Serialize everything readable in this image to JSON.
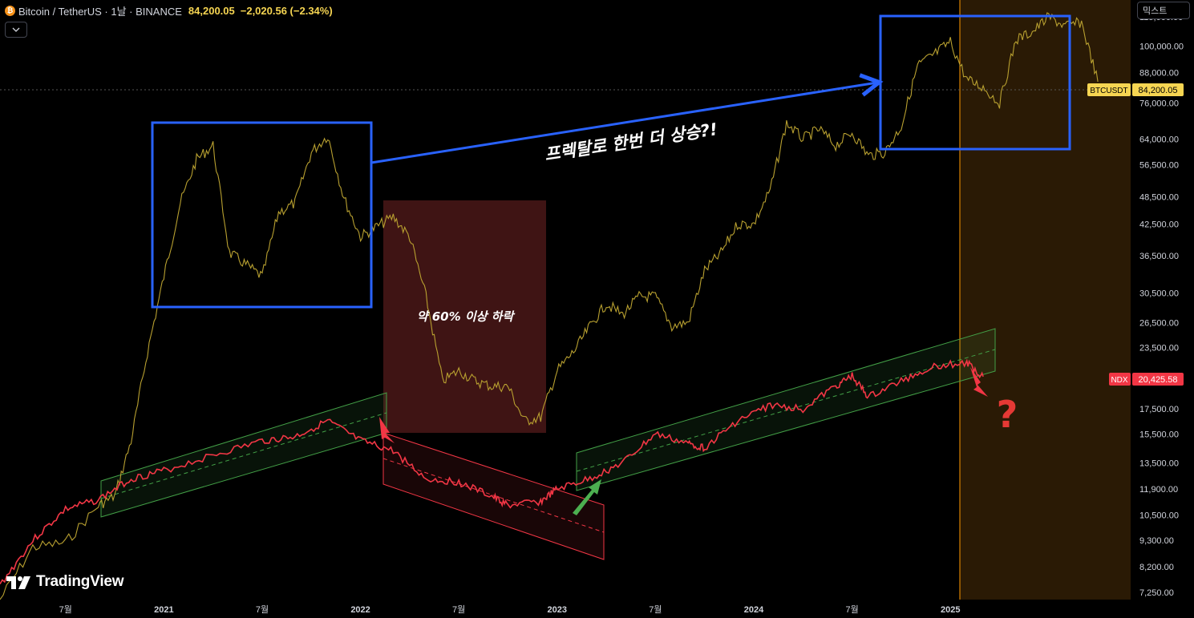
{
  "header": {
    "title": "Bitcoin / TetherUS · 1날 · BINANCE",
    "price": "84,200.05",
    "change": "−2,020.56 (−2.34%)"
  },
  "scale_button": "믹스트",
  "logo": "TradingView",
  "colors": {
    "background": "#000000",
    "btc_line": "#b8a030",
    "ndx_line": "#f23645",
    "green_channel": "#43a047",
    "red_channel": "#f23645",
    "box_blue": "#2962ff",
    "btc_label_bg": "#f6d552",
    "ndx_label_bg": "#f23645",
    "future_zone": "#ff9800"
  },
  "chart_data": {
    "type": "line",
    "y_scale": "log",
    "y_range": [
      7000,
      120000
    ],
    "x_range": [
      "2020-03",
      "2025-12"
    ],
    "x_tick_labels": [
      "7월",
      "2021",
      "7월",
      "2022",
      "7월",
      "2023",
      "7월",
      "2024",
      "7월",
      "2025"
    ],
    "y_tick_labels": [
      "115,000.00",
      "100,000.00",
      "88,000.00",
      "76,000.00",
      "64,000.00",
      "56,500.00",
      "48,500.00",
      "42,500.00",
      "36,500.00",
      "30,500.00",
      "26,500.00",
      "23,500.00",
      "20,425.58",
      "17,500.00",
      "15,500.00",
      "13,500.00",
      "11,900.00",
      "10,500.00",
      "9,300.00",
      "8,200.00",
      "7,250.00"
    ],
    "series": [
      {
        "name": "BTCUSDT",
        "last": "84,200.05",
        "x": [
          "2020-03",
          "2020-05",
          "2020-07",
          "2020-09",
          "2020-10",
          "2020-11",
          "2020-12",
          "2021-01",
          "2021-02",
          "2021-03",
          "2021-04",
          "2021-05",
          "2021-06",
          "2021-07",
          "2021-08",
          "2021-09",
          "2021-10",
          "2021-11",
          "2021-12",
          "2022-01",
          "2022-02",
          "2022-03",
          "2022-04",
          "2022-05",
          "2022-06",
          "2022-07",
          "2022-08",
          "2022-09",
          "2022-10",
          "2022-11",
          "2022-12",
          "2023-01",
          "2023-02",
          "2023-03",
          "2023-04",
          "2023-05",
          "2023-06",
          "2023-07",
          "2023-08",
          "2023-09",
          "2023-10",
          "2023-11",
          "2023-12",
          "2024-01",
          "2024-02",
          "2024-03",
          "2024-04",
          "2024-05",
          "2024-06",
          "2024-07",
          "2024-08",
          "2024-09",
          "2024-10",
          "2024-11",
          "2024-12",
          "2025-01",
          "2025-02",
          "2025-03",
          "2025-04",
          "2025-05",
          "2025-06",
          "2025-07",
          "2025-08",
          "2025-09",
          "2025-10"
        ],
        "values": [
          7000,
          9000,
          9200,
          11000,
          11500,
          15000,
          23000,
          33000,
          47000,
          58000,
          62000,
          37000,
          35000,
          33000,
          45000,
          47000,
          60000,
          65000,
          48000,
          40000,
          42000,
          44000,
          40000,
          30000,
          20000,
          21000,
          20000,
          19500,
          19500,
          16500,
          16800,
          21000,
          23000,
          26000,
          29000,
          27500,
          30000,
          30000,
          26000,
          26500,
          34000,
          37000,
          42500,
          42500,
          50000,
          69000,
          64000,
          67000,
          62000,
          66000,
          59000,
          60000,
          68000,
          91000,
          96000,
          102000,
          85000,
          82000,
          76000,
          103000,
          107000,
          115000,
          110000,
          112000,
          84200
        ]
      },
      {
        "name": "NDX",
        "last": "20,425.58",
        "x": [
          "2020-03",
          "2020-05",
          "2020-07",
          "2020-09",
          "2020-11",
          "2021-01",
          "2021-04",
          "2021-07",
          "2021-09",
          "2021-11",
          "2022-01",
          "2022-03",
          "2022-05",
          "2022-07",
          "2022-09",
          "2022-10",
          "2022-12",
          "2023-01",
          "2023-03",
          "2023-05",
          "2023-07",
          "2023-09",
          "2023-10",
          "2023-12",
          "2024-02",
          "2024-04",
          "2024-06",
          "2024-07",
          "2024-08",
          "2024-10",
          "2024-12",
          "2025-02",
          "2025-03"
        ],
        "values": [
          7500,
          9300,
          10800,
          11300,
          12500,
          13000,
          14000,
          15000,
          15300,
          16500,
          15000,
          14300,
          12500,
          12300,
          11500,
          11000,
          11200,
          11900,
          12500,
          13500,
          15500,
          14800,
          14500,
          16500,
          17800,
          17500,
          19500,
          20500,
          18500,
          20000,
          21500,
          21800,
          20425.58
        ]
      }
    ],
    "annotations": [
      {
        "type": "text",
        "text": "프렉탈로 한번 더 상승?!"
      },
      {
        "type": "text",
        "text": "약 60% 이상 하락"
      },
      {
        "type": "text",
        "text": "?"
      }
    ],
    "price_labels": [
      {
        "series": "BTCUSDT",
        "text": "BTCUSDT",
        "value": "84,200.05"
      },
      {
        "series": "NDX",
        "text": "NDX",
        "value": "20,425.58"
      }
    ]
  }
}
